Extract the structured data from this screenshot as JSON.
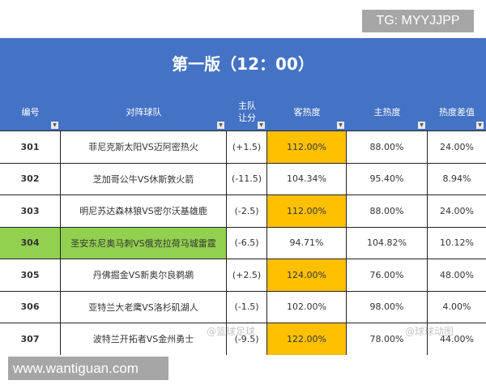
{
  "tg_label": "TG: MYYJJPP",
  "site_label": "www.wantiguan.com",
  "title": "第一版（12：00）",
  "headers": [
    "编号",
    "对阵球队",
    "主队\n让分",
    "客热度",
    "主热度",
    "热度差值"
  ],
  "rows": [
    {
      "id": "301",
      "match": "菲尼克斯太阳VS迈阿密热火",
      "spread": "(+1.5)",
      "away": "112.00%",
      "home": "88.00%",
      "diff": "24.00%",
      "away_hot": true,
      "green": false
    },
    {
      "id": "302",
      "match": "芝加哥公牛VS休斯敦火箭",
      "spread": "(-11.5)",
      "away": "104.34%",
      "home": "95.40%",
      "diff": "8.94%",
      "away_hot": false,
      "green": false
    },
    {
      "id": "303",
      "match": "明尼苏达森林狼VS密尔沃基雄鹿",
      "spread": "(-2.5)",
      "away": "112.00%",
      "home": "88.00%",
      "diff": "24.00%",
      "away_hot": true,
      "green": false
    },
    {
      "id": "304",
      "match": "圣安东尼奥马刺VS俄克拉荷马城雷霆",
      "spread": "(-6.5)",
      "away": "94.71%",
      "home": "104.82%",
      "diff": "10.12%",
      "away_hot": false,
      "green": true
    },
    {
      "id": "305",
      "match": "丹佛掘金VS新奥尔良鹈鹕",
      "spread": "(+2.5)",
      "away": "124.00%",
      "home": "76.00%",
      "diff": "48.00%",
      "away_hot": true,
      "green": false
    },
    {
      "id": "306",
      "match": "亚特兰大老鹰VS洛杉矶湖人",
      "spread": "(-1.5)",
      "away": "102.00%",
      "home": "98.00%",
      "diff": "4.00%",
      "away_hot": false,
      "green": false
    },
    {
      "id": "307",
      "match": "波特兰开拓者VS金州勇士",
      "spread": "(-9.5)",
      "away": "122.00%",
      "home": "78.00%",
      "diff": "44.00%",
      "away_hot": true,
      "green": false
    }
  ],
  "watermarks": [
    "@篮球足球",
    "@球球动图"
  ],
  "colors": {
    "header": "#4472c4",
    "hot": "#ffc000",
    "highlight": "#92d050"
  }
}
